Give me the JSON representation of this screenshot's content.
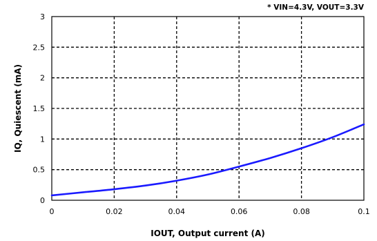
{
  "chart_data": {
    "type": "line",
    "title": "",
    "annotation": "* VIN=4.3V, VOUT=3.3V",
    "xlabel": "IOUT,  Output current (A)",
    "ylabel": "IQ, Quiescent  (mA)",
    "xlim": [
      0,
      0.1
    ],
    "ylim": [
      0,
      3
    ],
    "x_ticks": [
      "0",
      "0.02",
      "0.04",
      "0.06",
      "0.08",
      "0.1"
    ],
    "y_ticks": [
      "0",
      "0.5",
      "1",
      "1.5",
      "2",
      "2.5",
      "3"
    ],
    "grid": true,
    "grid_style": "dashed",
    "series": [
      {
        "color": "#1a1aff",
        "x": [
          0,
          0.01,
          0.02,
          0.03,
          0.04,
          0.05,
          0.06,
          0.07,
          0.08,
          0.09,
          0.1
        ],
        "y": [
          0.08,
          0.13,
          0.18,
          0.24,
          0.32,
          0.42,
          0.55,
          0.69,
          0.85,
          1.03,
          1.24
        ]
      }
    ]
  }
}
